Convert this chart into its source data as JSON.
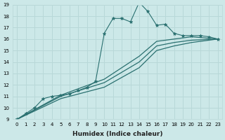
{
  "xlabel": "Humidex (Indice chaleur)",
  "ylabel": "",
  "background_color": "#cce8e8",
  "grid_color": "#b8d8d8",
  "line_color": "#2a7070",
  "xlim": [
    -0.5,
    23.5
  ],
  "ylim": [
    9,
    19
  ],
  "xticks": [
    0,
    1,
    2,
    3,
    4,
    5,
    6,
    7,
    8,
    9,
    10,
    11,
    12,
    13,
    14,
    15,
    16,
    17,
    18,
    19,
    20,
    21,
    22,
    23
  ],
  "yticks": [
    9,
    10,
    11,
    12,
    13,
    14,
    15,
    16,
    17,
    18,
    19
  ],
  "lines": [
    {
      "x": [
        0,
        1,
        2,
        3,
        4,
        5,
        6,
        7,
        8,
        9,
        10,
        11,
        12,
        13,
        14,
        15,
        16,
        17,
        18,
        19,
        20,
        21,
        22,
        23
      ],
      "y": [
        9,
        9.5,
        10.0,
        10.8,
        11.0,
        11.1,
        11.2,
        11.5,
        11.8,
        12.3,
        16.5,
        17.8,
        17.8,
        17.5,
        19.2,
        18.4,
        17.2,
        17.3,
        16.5,
        16.3,
        16.3,
        16.3,
        16.2,
        16.0
      ],
      "marker": "*",
      "markersize": 3.5,
      "lw": 0.8
    },
    {
      "x": [
        0,
        5,
        10,
        14,
        16,
        18,
        20,
        23
      ],
      "y": [
        9,
        11.1,
        12.5,
        14.5,
        15.8,
        16.0,
        16.2,
        16.0
      ],
      "marker": null,
      "markersize": 0,
      "lw": 0.9
    },
    {
      "x": [
        0,
        5,
        10,
        14,
        16,
        18,
        20,
        23
      ],
      "y": [
        9,
        11.0,
        12.2,
        14.0,
        15.4,
        15.7,
        15.9,
        16.0
      ],
      "marker": null,
      "markersize": 0,
      "lw": 0.9
    },
    {
      "x": [
        0,
        5,
        10,
        14,
        16,
        18,
        20,
        23
      ],
      "y": [
        9,
        10.8,
        11.8,
        13.5,
        15.0,
        15.4,
        15.7,
        16.0
      ],
      "marker": null,
      "markersize": 0,
      "lw": 0.9
    }
  ]
}
